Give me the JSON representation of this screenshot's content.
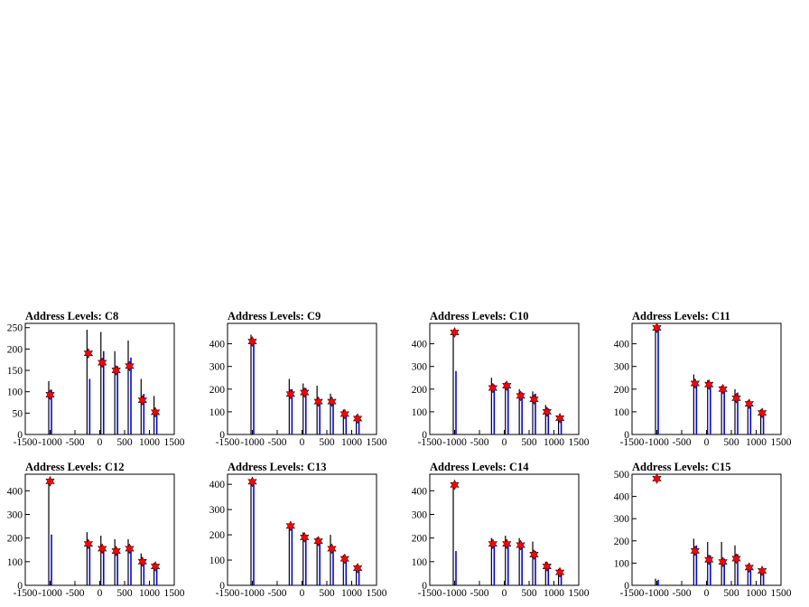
{
  "chart_data": [
    {
      "type": "bar",
      "title": "Address Levels: C8",
      "xlim": [
        -1500,
        1500
      ],
      "ylim": [
        0,
        260
      ],
      "yticks": [
        0,
        50,
        100,
        150,
        200,
        250
      ],
      "xticks": [
        -1500,
        -1000,
        -500,
        0,
        500,
        1000,
        1500
      ],
      "peaks": [
        {
          "x": -1000,
          "black": 125,
          "blue": 105,
          "marker": 93
        },
        {
          "x": -230,
          "black": 245,
          "blue": 130,
          "marker": 190
        },
        {
          "x": 50,
          "black": 240,
          "blue": 195,
          "marker": 168
        },
        {
          "x": 330,
          "black": 195,
          "blue": 160,
          "marker": 150
        },
        {
          "x": 600,
          "black": 220,
          "blue": 180,
          "marker": 160
        },
        {
          "x": 860,
          "black": 130,
          "blue": 95,
          "marker": 80
        },
        {
          "x": 1120,
          "black": 90,
          "blue": 55,
          "marker": 52
        }
      ]
    },
    {
      "type": "bar",
      "title": "Address Levels: C9",
      "xlim": [
        -1500,
        1500
      ],
      "ylim": [
        0,
        490
      ],
      "yticks": [
        0,
        100,
        200,
        300,
        400
      ],
      "xticks": [
        -1500,
        -1000,
        -500,
        0,
        500,
        1000,
        1500
      ],
      "peaks": [
        {
          "x": -1000,
          "black": 440,
          "blue": 420,
          "marker": 410
        },
        {
          "x": -230,
          "black": 245,
          "blue": 200,
          "marker": 178
        },
        {
          "x": 50,
          "black": 225,
          "blue": 205,
          "marker": 185
        },
        {
          "x": 330,
          "black": 215,
          "blue": 150,
          "marker": 145
        },
        {
          "x": 600,
          "black": 180,
          "blue": 150,
          "marker": 145
        },
        {
          "x": 860,
          "black": 110,
          "blue": 95,
          "marker": 90
        },
        {
          "x": 1120,
          "black": 85,
          "blue": 65,
          "marker": 70
        }
      ]
    },
    {
      "type": "bar",
      "title": "Address Levels: C10",
      "xlim": [
        -1500,
        1500
      ],
      "ylim": [
        0,
        490
      ],
      "yticks": [
        0,
        100,
        200,
        300,
        400
      ],
      "xticks": [
        -1500,
        -1000,
        -500,
        0,
        500,
        1000,
        1500
      ],
      "peaks": [
        {
          "x": -1000,
          "black": 450,
          "blue": 280,
          "marker": 450
        },
        {
          "x": -230,
          "black": 250,
          "blue": 220,
          "marker": 205
        },
        {
          "x": 50,
          "black": 230,
          "blue": 220,
          "marker": 215
        },
        {
          "x": 330,
          "black": 200,
          "blue": 185,
          "marker": 170
        },
        {
          "x": 600,
          "black": 190,
          "blue": 180,
          "marker": 155
        },
        {
          "x": 860,
          "black": 130,
          "blue": 115,
          "marker": 100
        },
        {
          "x": 1120,
          "black": 80,
          "blue": 70,
          "marker": 72
        }
      ]
    },
    {
      "type": "bar",
      "title": "Address Levels: C11",
      "xlim": [
        -1500,
        1500
      ],
      "ylim": [
        0,
        490
      ],
      "yticks": [
        0,
        100,
        200,
        300,
        400
      ],
      "xticks": [
        -1500,
        -1000,
        -500,
        0,
        500,
        1000,
        1500
      ],
      "peaks": [
        {
          "x": -1000,
          "black": 470,
          "blue": 470,
          "marker": 470
        },
        {
          "x": -230,
          "black": 265,
          "blue": 230,
          "marker": 225
        },
        {
          "x": 50,
          "black": 240,
          "blue": 225,
          "marker": 220
        },
        {
          "x": 330,
          "black": 215,
          "blue": 200,
          "marker": 200
        },
        {
          "x": 600,
          "black": 200,
          "blue": 185,
          "marker": 160
        },
        {
          "x": 860,
          "black": 150,
          "blue": 130,
          "marker": 135
        },
        {
          "x": 1120,
          "black": 110,
          "blue": 100,
          "marker": 95
        }
      ]
    },
    {
      "type": "bar",
      "title": "Address Levels: C12",
      "xlim": [
        -1500,
        1500
      ],
      "ylim": [
        0,
        470
      ],
      "yticks": [
        0,
        100,
        200,
        300,
        400
      ],
      "xticks": [
        -1500,
        -1000,
        -500,
        0,
        500,
        1000,
        1500
      ],
      "peaks": [
        {
          "x": -1000,
          "black": 450,
          "blue": 215,
          "marker": 440
        },
        {
          "x": -230,
          "black": 225,
          "blue": 175,
          "marker": 175
        },
        {
          "x": 50,
          "black": 210,
          "blue": 165,
          "marker": 155
        },
        {
          "x": 330,
          "black": 195,
          "blue": 150,
          "marker": 145
        },
        {
          "x": 600,
          "black": 195,
          "blue": 165,
          "marker": 155
        },
        {
          "x": 860,
          "black": 135,
          "blue": 105,
          "marker": 100
        },
        {
          "x": 1120,
          "black": 95,
          "blue": 80,
          "marker": 80
        }
      ]
    },
    {
      "type": "bar",
      "title": "Address Levels: C13",
      "xlim": [
        -1500,
        1500
      ],
      "ylim": [
        0,
        440
      ],
      "yticks": [
        0,
        100,
        200,
        300,
        400
      ],
      "xticks": [
        -1500,
        -1000,
        -500,
        0,
        500,
        1000,
        1500
      ],
      "peaks": [
        {
          "x": -1000,
          "black": 420,
          "blue": 400,
          "marker": 410
        },
        {
          "x": -230,
          "black": 240,
          "blue": 225,
          "marker": 235
        },
        {
          "x": 50,
          "black": 210,
          "blue": 185,
          "marker": 190
        },
        {
          "x": 330,
          "black": 190,
          "blue": 175,
          "marker": 175
        },
        {
          "x": 600,
          "black": 200,
          "blue": 155,
          "marker": 145
        },
        {
          "x": 860,
          "black": 120,
          "blue": 110,
          "marker": 105
        },
        {
          "x": 1120,
          "black": 80,
          "blue": 70,
          "marker": 68
        }
      ]
    },
    {
      "type": "bar",
      "title": "Address Levels: C14",
      "xlim": [
        -1500,
        1500
      ],
      "ylim": [
        0,
        470
      ],
      "yticks": [
        0,
        100,
        200,
        300,
        400
      ],
      "xticks": [
        -1500,
        -1000,
        -500,
        0,
        500,
        1000,
        1500
      ],
      "peaks": [
        {
          "x": -1000,
          "black": 430,
          "blue": 145,
          "marker": 425
        },
        {
          "x": -230,
          "black": 200,
          "blue": 170,
          "marker": 175
        },
        {
          "x": 50,
          "black": 210,
          "blue": 180,
          "marker": 175
        },
        {
          "x": 330,
          "black": 200,
          "blue": 165,
          "marker": 170
        },
        {
          "x": 600,
          "black": 185,
          "blue": 145,
          "marker": 130
        },
        {
          "x": 860,
          "black": 100,
          "blue": 90,
          "marker": 80
        },
        {
          "x": 1120,
          "black": 70,
          "blue": 55,
          "marker": 55
        }
      ]
    },
    {
      "type": "bar",
      "title": "Address Levels: C15",
      "xlim": [
        -1500,
        1500
      ],
      "ylim": [
        0,
        500
      ],
      "yticks": [
        0,
        100,
        200,
        300,
        400,
        500
      ],
      "xticks": [
        -1500,
        -1000,
        -500,
        0,
        500,
        1000,
        1500
      ],
      "peaks": [
        {
          "x": -1000,
          "black": 30,
          "blue": 25,
          "marker": 480
        },
        {
          "x": -230,
          "black": 210,
          "blue": 180,
          "marker": 155
        },
        {
          "x": 50,
          "black": 195,
          "blue": 135,
          "marker": 115
        },
        {
          "x": 330,
          "black": 195,
          "blue": 120,
          "marker": 105
        },
        {
          "x": 600,
          "black": 180,
          "blue": 140,
          "marker": 120
        },
        {
          "x": 860,
          "black": 95,
          "blue": 85,
          "marker": 80
        },
        {
          "x": 1120,
          "black": 70,
          "blue": 60,
          "marker": 65
        }
      ]
    }
  ],
  "colors": {
    "outline": "#000000",
    "black_series": "#000000",
    "blue_series": "#0000ff",
    "marker_fill": "#ff0000",
    "marker_edge": "#000000"
  }
}
